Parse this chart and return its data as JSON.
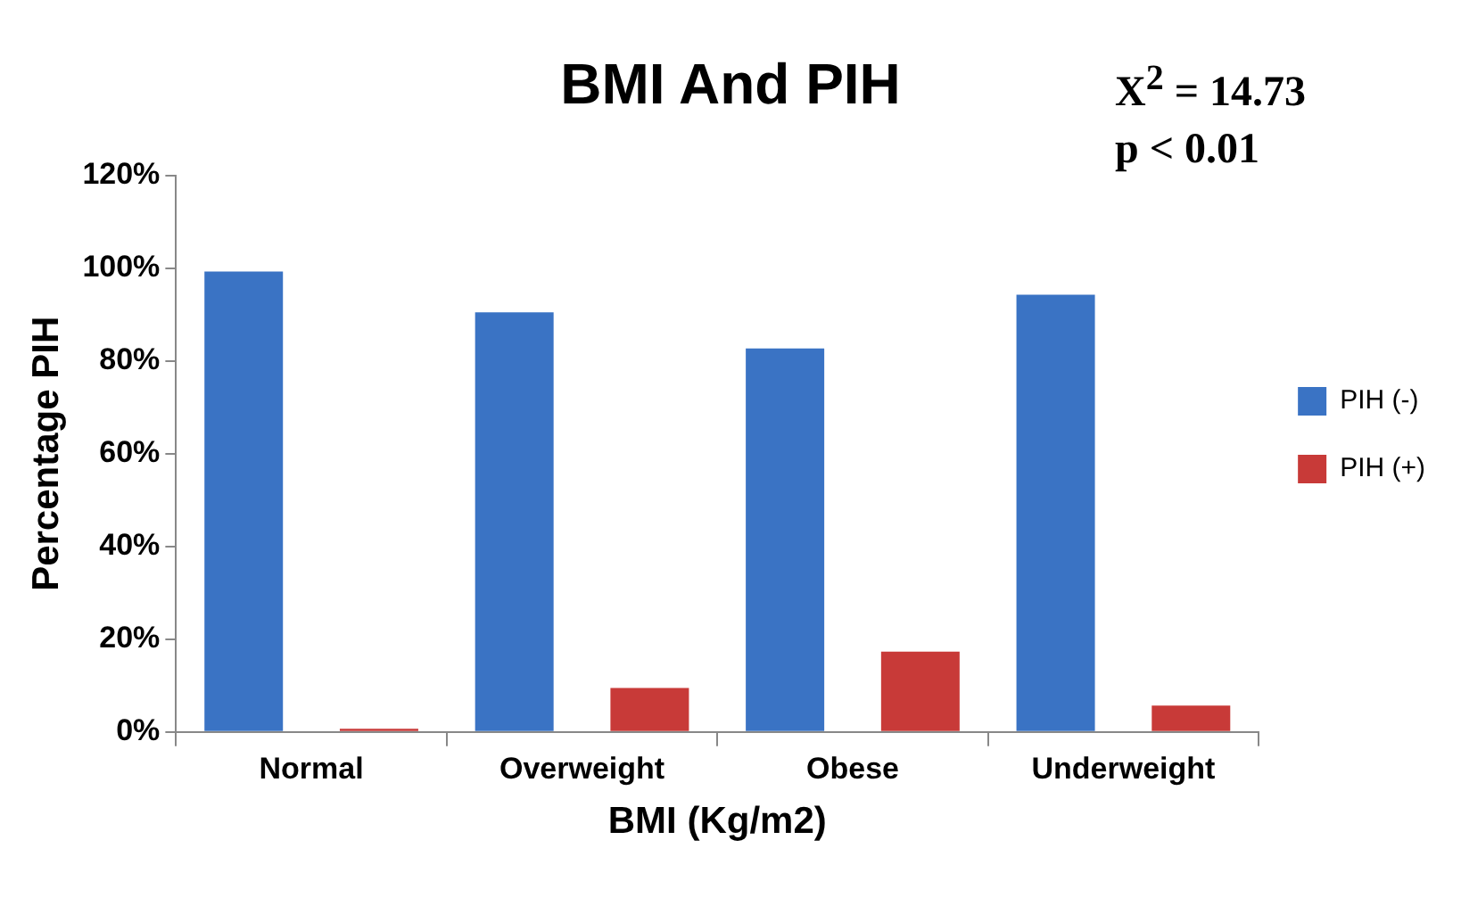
{
  "chart_data": {
    "type": "bar",
    "title": "BMI And PIH",
    "xlabel": "BMI (Kg/m2)",
    "ylabel": "Percentage PIH",
    "categories": [
      "Normal",
      "Overweight",
      "Obese",
      "Underweight"
    ],
    "series": [
      {
        "name": "PIH (-)",
        "color": "#3a73c4",
        "values": [
          99.3,
          90.5,
          82.7,
          94.3
        ]
      },
      {
        "name": "PIH (+)",
        "color": "#c83a38",
        "values": [
          0.7,
          9.5,
          17.3,
          5.7
        ]
      }
    ],
    "ylim": [
      0,
      120
    ],
    "yticks": [
      {
        "value": 0,
        "label": "0%"
      },
      {
        "value": 20,
        "label": "20%"
      },
      {
        "value": 40,
        "label": "40%"
      },
      {
        "value": 60,
        "label": "60%"
      },
      {
        "value": 80,
        "label": "80%"
      },
      {
        "value": 100,
        "label": "100%"
      },
      {
        "value": 120,
        "label": "120%"
      }
    ],
    "grid": false,
    "legend": "right",
    "annotations": [
      "X$^{2}$ = 14.73",
      "p < 0.01"
    ]
  }
}
